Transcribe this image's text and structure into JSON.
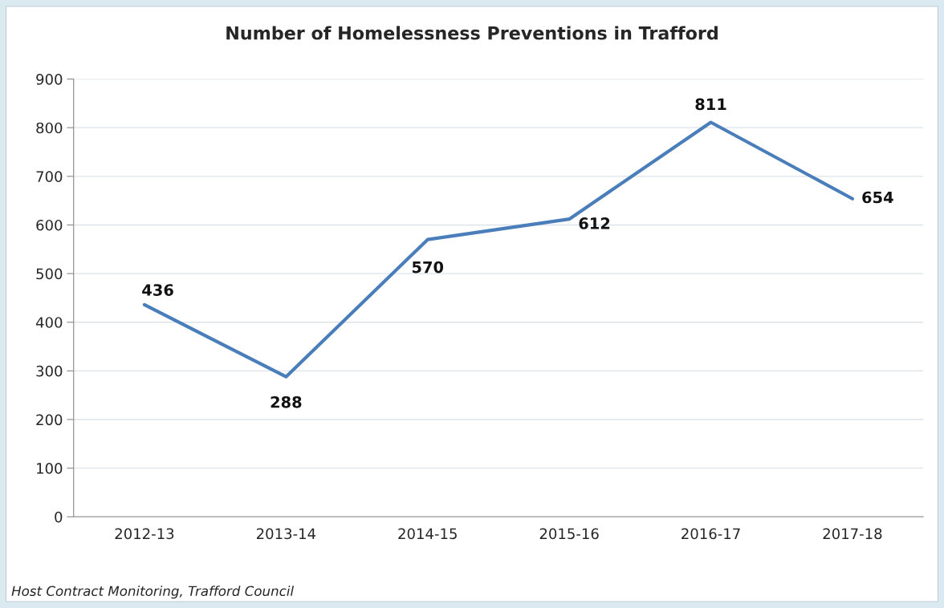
{
  "chart_data": {
    "type": "line",
    "title": "Number of Homelessness Preventions in Trafford",
    "categories": [
      "2012-13",
      "2013-14",
      "2014-15",
      "2015-16",
      "2016-17",
      "2017-18"
    ],
    "series": [
      {
        "color": "#4a7ebb",
        "values": [
          436,
          288,
          570,
          612,
          811,
          654
        ]
      }
    ],
    "ylim": [
      0,
      900
    ],
    "yticks": [
      0,
      100,
      200,
      300,
      400,
      500,
      600,
      700,
      800,
      900
    ],
    "grid": "y",
    "data_labels": true,
    "marker": "none",
    "line_style": "solid",
    "annotations": [
      "Host Contract Monitoring, Trafford Council"
    ]
  }
}
